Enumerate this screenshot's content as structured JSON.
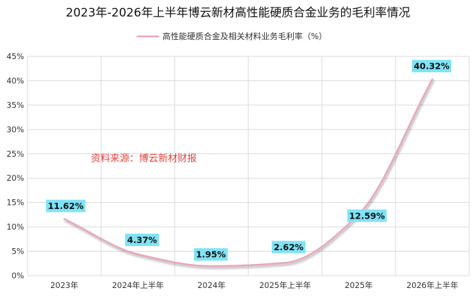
{
  "chart_data": {
    "type": "line",
    "title": "2023年-2026年上半年博云新材高性能硬质合金业务的毛利率情况",
    "categories": [
      "2023年",
      "2024年上半年",
      "2024年",
      "2025年上半年",
      "2025年",
      "2026年上半年"
    ],
    "series": [
      {
        "name": "高性能硬质合金及相关材料业务毛利率（%）",
        "values": [
          11.62,
          4.37,
          1.95,
          2.62,
          12.59,
          40.32
        ],
        "labels": [
          "11.62%",
          "4.37%",
          "1.95%",
          "2.62%",
          "12.59%",
          "40.32%"
        ],
        "color": "#e8a6b8"
      }
    ],
    "y_ticks": [
      "0%",
      "5%",
      "10%",
      "15%",
      "20%",
      "25%",
      "30%",
      "35%",
      "40%",
      "45%"
    ],
    "ylim": [
      0,
      45
    ],
    "grid": true,
    "legend_position": "top-center",
    "annotation": "资料来源：博云新材财报",
    "colors": {
      "line": "#e8a6b8",
      "label_bg": "#7fe3f5",
      "annotation": "#e8413c",
      "grid": "#d9d9d9"
    }
  }
}
